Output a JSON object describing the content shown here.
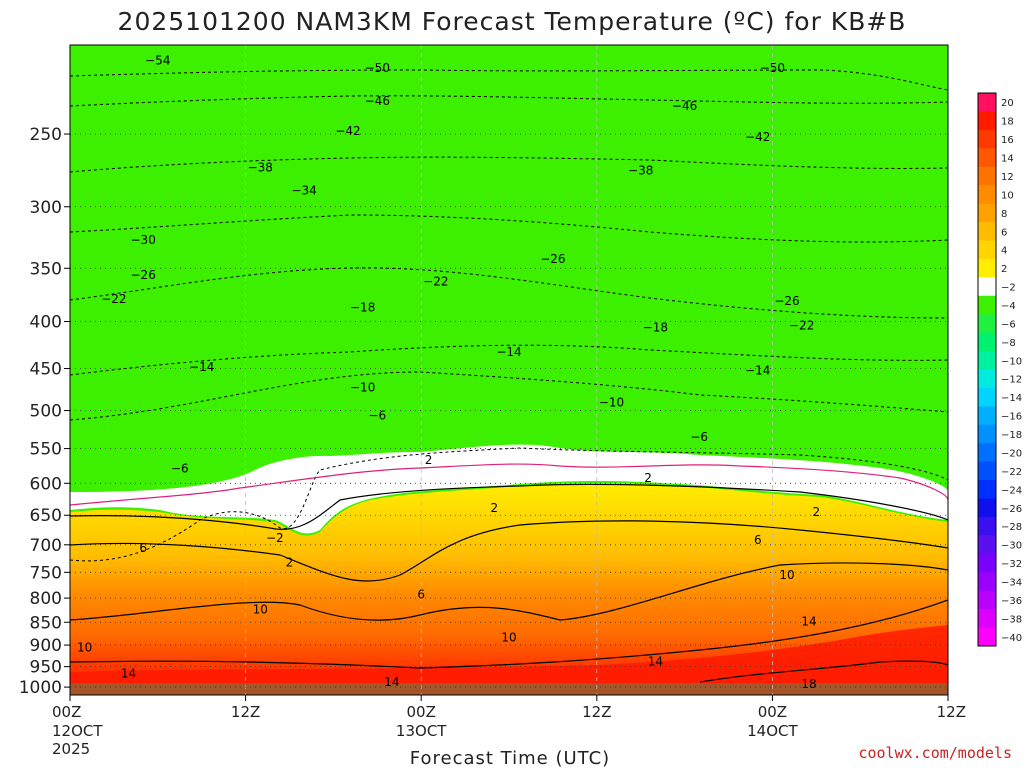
{
  "chart_data": {
    "type": "heatmap",
    "title": "2025101200 NAM3KM Forecast Temperature (ºC) for KB#B",
    "xlabel": "Forecast Time (UTC)",
    "ylabel": "",
    "credit": "coolwx.com/models",
    "x_ticks": [
      {
        "hour": 0,
        "label": "00Z",
        "date": "12OCT",
        "year": "2025"
      },
      {
        "hour": 12,
        "label": "12Z",
        "date": "",
        "year": ""
      },
      {
        "hour": 24,
        "label": "00Z",
        "date": "13OCT",
        "year": ""
      },
      {
        "hour": 36,
        "label": "12Z",
        "date": "",
        "year": ""
      },
      {
        "hour": 48,
        "label": "00Z",
        "date": "14OCT",
        "year": ""
      },
      {
        "hour": 60,
        "label": "12Z",
        "date": "",
        "year": ""
      }
    ],
    "xlim": [
      0,
      60
    ],
    "y_ticks": [
      250,
      300,
      350,
      400,
      450,
      500,
      550,
      600,
      650,
      700,
      750,
      800,
      850,
      900,
      950,
      1000
    ],
    "ylim": [
      200,
      1020
    ],
    "y_scale": "log-pressure",
    "colorbar": {
      "levels": [
        20,
        18,
        16,
        14,
        12,
        10,
        8,
        6,
        4,
        2,
        -2,
        -4,
        -6,
        -8,
        -10,
        -12,
        -14,
        -16,
        -18,
        -20,
        -22,
        -24,
        -26,
        -28,
        -30,
        -32,
        -34,
        -36,
        -38,
        -40
      ],
      "colors": [
        "#ff1060",
        "#ff1a00",
        "#ff3a00",
        "#ff5800",
        "#ff7400",
        "#ff8c00",
        "#ffa200",
        "#ffbc00",
        "#ffd400",
        "#ffee00",
        "#ffffff",
        "#3cf000",
        "#20f040",
        "#00f070",
        "#00f0a0",
        "#00ece0",
        "#00d4ff",
        "#00b0ff",
        "#0090ff",
        "#0070ff",
        "#0050ff",
        "#0030ff",
        "#1010ee",
        "#3a10f0",
        "#5a10f0",
        "#7a00ff",
        "#9a00ff",
        "#ba00ff",
        "#dd00ff",
        "#ff00ff"
      ]
    },
    "contour_labels": [
      {
        "value": -54,
        "hour": 6,
        "p": 208
      },
      {
        "value": -50,
        "hour": 21,
        "p": 212
      },
      {
        "value": -50,
        "hour": 48,
        "p": 212
      },
      {
        "value": -46,
        "hour": 21,
        "p": 230
      },
      {
        "value": -46,
        "hour": 42,
        "p": 233
      },
      {
        "value": -42,
        "hour": 19,
        "p": 248
      },
      {
        "value": -42,
        "hour": 47,
        "p": 252
      },
      {
        "value": -38,
        "hour": 13,
        "p": 272
      },
      {
        "value": -38,
        "hour": 39,
        "p": 274
      },
      {
        "value": -34,
        "hour": 16,
        "p": 288
      },
      {
        "value": -30,
        "hour": 5,
        "p": 326
      },
      {
        "value": -26,
        "hour": 5,
        "p": 356
      },
      {
        "value": -26,
        "hour": 33,
        "p": 342
      },
      {
        "value": -26,
        "hour": 49,
        "p": 380
      },
      {
        "value": -22,
        "hour": 3,
        "p": 378
      },
      {
        "value": -22,
        "hour": 25,
        "p": 362
      },
      {
        "value": -22,
        "hour": 50,
        "p": 404
      },
      {
        "value": -18,
        "hour": 20,
        "p": 386
      },
      {
        "value": -18,
        "hour": 40,
        "p": 406
      },
      {
        "value": -14,
        "hour": 9,
        "p": 448
      },
      {
        "value": -14,
        "hour": 30,
        "p": 432
      },
      {
        "value": -14,
        "hour": 47,
        "p": 452
      },
      {
        "value": -10,
        "hour": 20,
        "p": 472
      },
      {
        "value": -10,
        "hour": 37,
        "p": 490
      },
      {
        "value": -6,
        "hour": 21,
        "p": 506
      },
      {
        "value": -6,
        "hour": 43,
        "p": 534
      },
      {
        "value": -6,
        "hour": 7.5,
        "p": 578
      },
      {
        "value": 2,
        "hour": 24.5,
        "p": 566
      },
      {
        "value": 2,
        "hour": 39.5,
        "p": 592
      },
      {
        "value": 2,
        "hour": 29,
        "p": 638
      },
      {
        "value": 2,
        "hour": 51,
        "p": 645
      },
      {
        "value": -2,
        "hour": 14,
        "p": 688
      },
      {
        "value": 2,
        "hour": 15,
        "p": 732
      },
      {
        "value": 6,
        "hour": 5,
        "p": 706
      },
      {
        "value": 6,
        "hour": 47,
        "p": 692
      },
      {
        "value": 6,
        "hour": 24,
        "p": 793
      },
      {
        "value": 10,
        "hour": 13,
        "p": 823
      },
      {
        "value": 10,
        "hour": 49,
        "p": 755
      },
      {
        "value": 10,
        "hour": 1,
        "p": 905
      },
      {
        "value": 10,
        "hour": 30,
        "p": 883
      },
      {
        "value": 14,
        "hour": 4,
        "p": 967
      },
      {
        "value": 14,
        "hour": 22,
        "p": 987
      },
      {
        "value": 14,
        "hour": 40,
        "p": 938
      },
      {
        "value": 14,
        "hour": 50.5,
        "p": 848
      },
      {
        "value": 18,
        "hour": 50.5,
        "p": 992
      }
    ]
  }
}
